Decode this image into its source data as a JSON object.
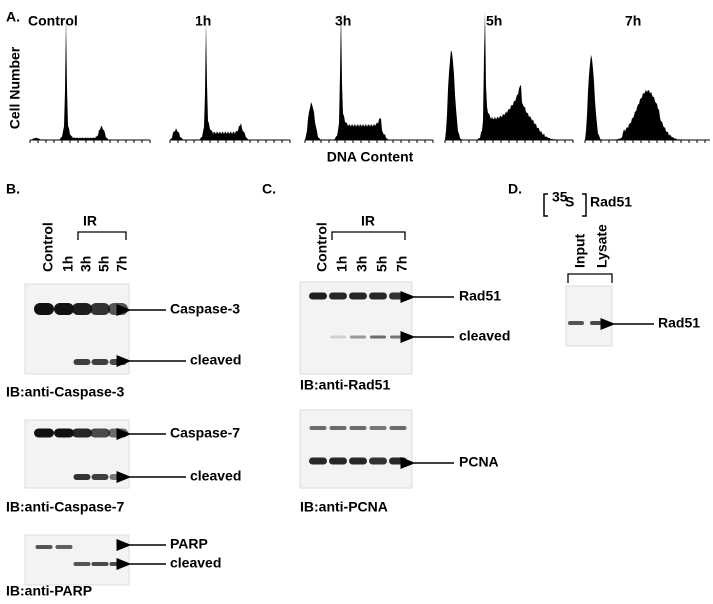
{
  "figure_a": {
    "label": "A.",
    "conditions": [
      "Control",
      "1h",
      "3h",
      "5h",
      "7h"
    ],
    "y_label": "Cell Number",
    "x_label": "DNA Content"
  },
  "figure_b": {
    "label": "B.",
    "treatment": "IR",
    "lanes": [
      "Control",
      "1h",
      "3h",
      "5h",
      "7h"
    ],
    "blots": [
      {
        "bands": [
          "Caspase-3",
          "cleaved"
        ],
        "antibody": "IB:anti-Caspase-3"
      },
      {
        "bands": [
          "Caspase-7",
          "cleaved"
        ],
        "antibody": "IB:anti-Caspase-7"
      },
      {
        "bands": [
          "PARP",
          "cleaved"
        ],
        "antibody": "IB:anti-PARP"
      }
    ]
  },
  "figure_c": {
    "label": "C.",
    "treatment": "IR",
    "lanes": [
      "Control",
      "1h",
      "3h",
      "5h",
      "7h"
    ],
    "blots": [
      {
        "bands": [
          "Rad51",
          "cleaved"
        ],
        "antibody": "IB:anti-Rad51"
      },
      {
        "bands": [
          "PCNA"
        ],
        "antibody": "IB:anti-PCNA"
      }
    ]
  },
  "figure_d": {
    "label": "D.",
    "isotope_mass": "35",
    "isotope": "S",
    "protein": "Rad51",
    "lanes": [
      "Input",
      "Lysate"
    ],
    "band": "Rad51"
  }
}
